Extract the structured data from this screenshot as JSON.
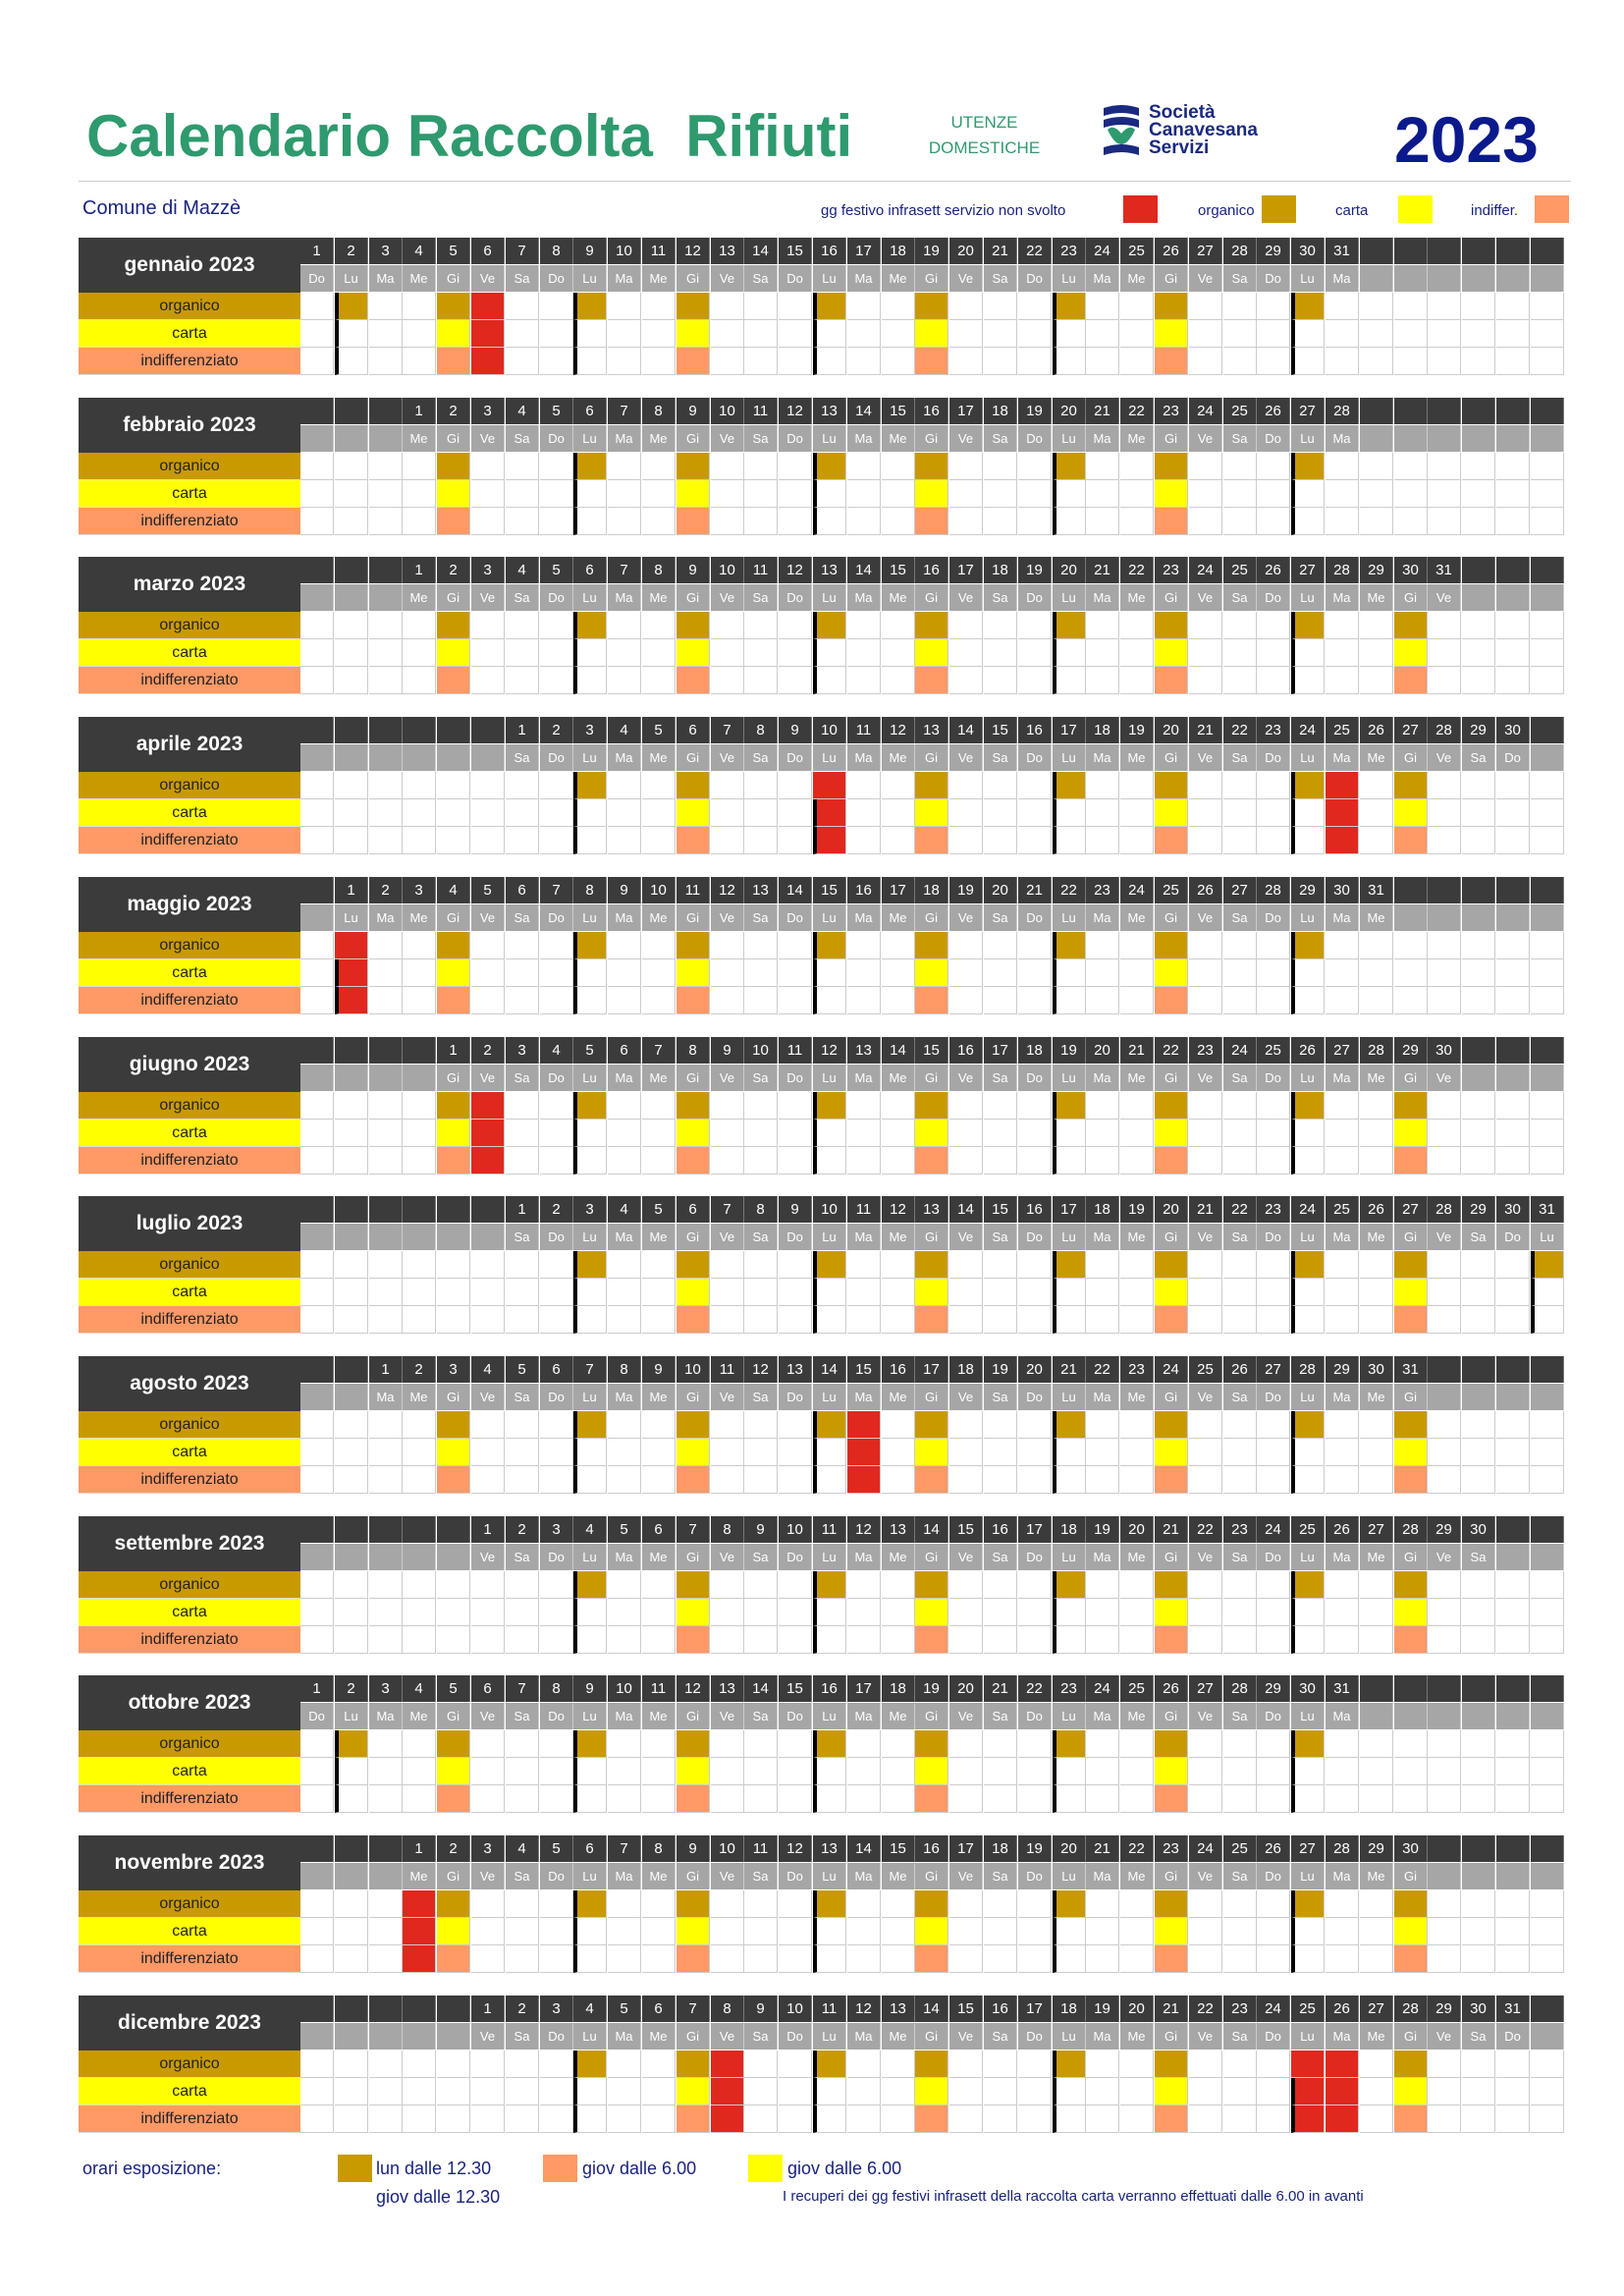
{
  "header": {
    "title": "Calendario Raccolta  Rifiuti",
    "utenze_line1": "UTENZE",
    "utenze_line2": "DOMESTICHE",
    "logo_line1": "Società",
    "logo_line2": "Canavesana",
    "logo_line3": "Servizi",
    "year": "2023"
  },
  "comune": "Comune di Mazzè",
  "legend": {
    "festivo": "gg festivo infrasett servizio non svolto",
    "organico": "organico",
    "carta": "carta",
    "indiff": "indiffer."
  },
  "colors": {
    "organico": "#c89a00",
    "carta": "#ffff00",
    "indiff": "#ff9966",
    "festivo": "#e0281e",
    "header_dark": "#3b3b3b",
    "header_gray": "#a6a6a6"
  },
  "row_labels": [
    "organico",
    "carta",
    "indifferenziato"
  ],
  "months": [
    {
      "name": "gennaio 2023",
      "start": 0,
      "days": 31,
      "holidays": [
        6
      ]
    },
    {
      "name": "febbraio 2023",
      "start": 3,
      "days": 28,
      "holidays": []
    },
    {
      "name": "marzo 2023",
      "start": 3,
      "days": 31,
      "holidays": []
    },
    {
      "name": "aprile 2023",
      "start": 6,
      "days": 30,
      "holidays": [
        10,
        25
      ]
    },
    {
      "name": "maggio 2023",
      "start": 1,
      "days": 31,
      "holidays": [
        1
      ]
    },
    {
      "name": "giugno 2023",
      "start": 4,
      "days": 30,
      "holidays": [
        2
      ]
    },
    {
      "name": "luglio 2023",
      "start": 6,
      "days": 31,
      "holidays": []
    },
    {
      "name": "agosto 2023",
      "start": 2,
      "days": 31,
      "holidays": [
        15
      ]
    },
    {
      "name": "settembre 2023",
      "start": 5,
      "days": 30,
      "holidays": []
    },
    {
      "name": "ottobre 2023",
      "start": 0,
      "days": 31,
      "holidays": []
    },
    {
      "name": "novembre 2023",
      "start": 3,
      "days": 30,
      "holidays": [
        1
      ]
    },
    {
      "name": "dicembre 2023",
      "start": 5,
      "days": 31,
      "holidays": [
        8,
        25,
        26
      ]
    }
  ],
  "weekday_abbr": [
    "Do",
    "Lu",
    "Ma",
    "Me",
    "Gi",
    "Ve",
    "Sa"
  ],
  "footer": {
    "label": "orari esposizione:",
    "item1_line1": "lun dalle 12.30",
    "item1_line2": "giov dalle 12.30",
    "item2": "giov dalle 6.00",
    "item3": "giov dalle 6.00",
    "note": "I recuperi dei gg festivi infrasett della raccolta carta verranno effettuati dalle 6.00 in avanti"
  }
}
